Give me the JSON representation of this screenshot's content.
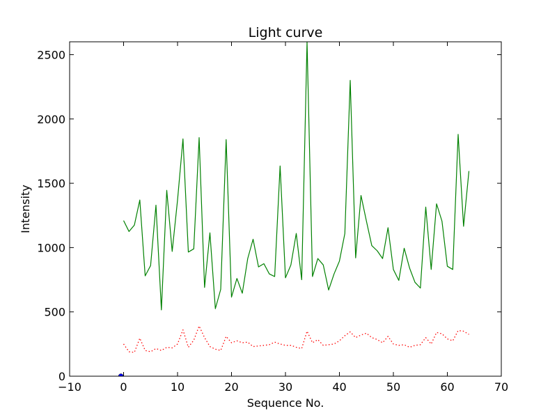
{
  "chart_data": {
    "type": "line",
    "title": "Light curve",
    "xlabel": "Sequence No.",
    "ylabel": "Intensity",
    "xlim": [
      -10,
      70
    ],
    "ylim": [
      0,
      2600
    ],
    "xticks": [
      -10,
      0,
      10,
      20,
      30,
      40,
      50,
      60,
      70
    ],
    "yticks": [
      0,
      500,
      1000,
      1500,
      2000,
      2500
    ],
    "xtick_labels": [
      "−10",
      "0",
      "10",
      "20",
      "30",
      "40",
      "50",
      "60",
      "70"
    ],
    "ytick_labels": [
      "0",
      "500",
      "1000",
      "1500",
      "2000",
      "2500"
    ],
    "grid": false,
    "legend": "none",
    "series": [
      {
        "style": "solid",
        "color": "#008000",
        "x": [
          0,
          1,
          2,
          3,
          4,
          5,
          6,
          7,
          8,
          9,
          10,
          11,
          12,
          13,
          14,
          15,
          16,
          17,
          18,
          19,
          20,
          21,
          22,
          23,
          24,
          25,
          26,
          27,
          28,
          29,
          30,
          31,
          32,
          33,
          34,
          35,
          36,
          37,
          38,
          39,
          40,
          41,
          42,
          43,
          44,
          45,
          46,
          47,
          48,
          49,
          50,
          51,
          52,
          53,
          54,
          55,
          56,
          57,
          58,
          59,
          60,
          61,
          62,
          63,
          64
        ],
        "y": [
          1210,
          1125,
          1175,
          1370,
          780,
          860,
          1330,
          515,
          1445,
          970,
          1370,
          1845,
          965,
          990,
          1855,
          690,
          1115,
          525,
          675,
          1840,
          615,
          760,
          645,
          915,
          1065,
          850,
          875,
          795,
          775,
          1635,
          765,
          865,
          1110,
          750,
          2600,
          775,
          915,
          865,
          670,
          795,
          895,
          1110,
          2300,
          920,
          1405,
          1205,
          1015,
          975,
          915,
          1155,
          830,
          745,
          995,
          840,
          730,
          685,
          1315,
          830,
          1340,
          1205,
          855,
          830,
          1880,
          1165,
          1595
        ]
      },
      {
        "style": "dotted",
        "color": "#ff0000",
        "x": [
          0,
          1,
          2,
          3,
          4,
          5,
          6,
          7,
          8,
          9,
          10,
          11,
          12,
          13,
          14,
          15,
          16,
          17,
          18,
          19,
          20,
          21,
          22,
          23,
          24,
          25,
          26,
          27,
          28,
          29,
          30,
          31,
          32,
          33,
          34,
          35,
          36,
          37,
          38,
          39,
          40,
          41,
          42,
          43,
          44,
          45,
          46,
          47,
          48,
          49,
          50,
          51,
          52,
          53,
          54,
          55,
          56,
          57,
          58,
          59,
          60,
          61,
          62,
          63,
          64
        ],
        "y": [
          250,
          190,
          185,
          295,
          200,
          190,
          215,
          200,
          225,
          220,
          250,
          360,
          225,
          280,
          390,
          300,
          230,
          210,
          200,
          310,
          260,
          275,
          260,
          265,
          230,
          235,
          240,
          245,
          265,
          250,
          240,
          240,
          225,
          215,
          350,
          260,
          285,
          240,
          245,
          250,
          275,
          315,
          345,
          300,
          320,
          335,
          300,
          285,
          260,
          310,
          250,
          240,
          245,
          225,
          240,
          245,
          300,
          250,
          340,
          330,
          290,
          275,
          355,
          350,
          325
        ]
      },
      {
        "style": "marker",
        "color": "#0000ff",
        "x": [
          -0.5
        ],
        "y": [
          0
        ]
      }
    ]
  }
}
